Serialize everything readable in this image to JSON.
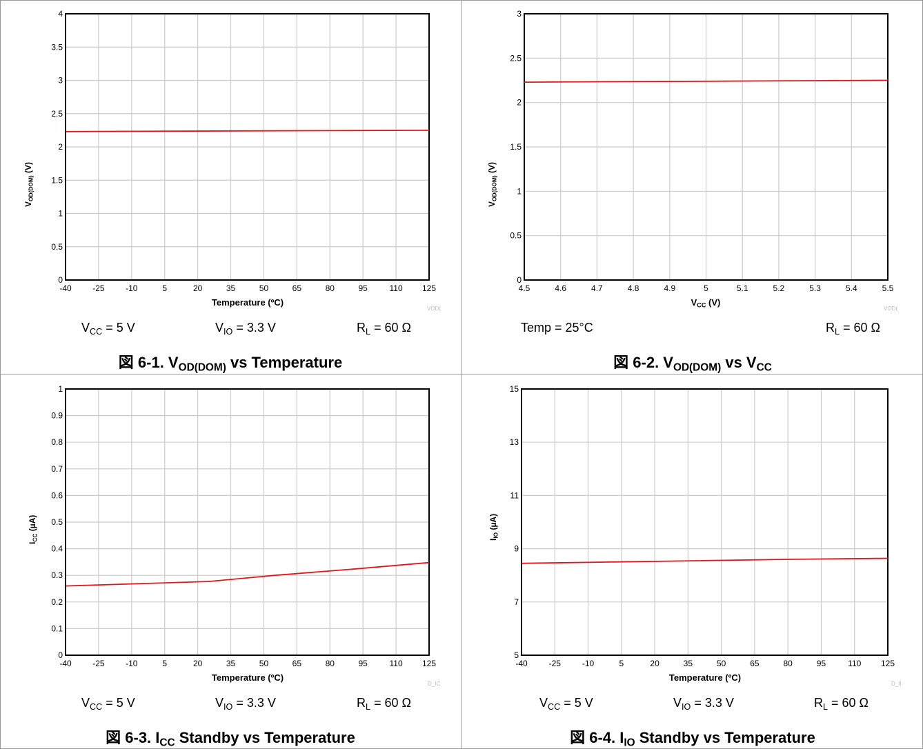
{
  "colors": {
    "series": "#e0161b",
    "grid": "#cccccc",
    "frame": "#000000",
    "divider": "#9a9a9a"
  },
  "chart_data": [
    {
      "type": "line",
      "ylabel": {
        "main": "V",
        "sub": "OD(DOM)",
        "unit": " (V)"
      },
      "xlabel": {
        "main": "Temperature (ºC)",
        "sub": "",
        "unit": ""
      },
      "xticks": [
        "-40",
        "-25",
        "-10",
        "5",
        "20",
        "35",
        "50",
        "65",
        "80",
        "95",
        "110",
        "125"
      ],
      "yticks": [
        "0",
        "0.5",
        "1",
        "1.5",
        "2",
        "2.5",
        "3",
        "3.5",
        "4"
      ],
      "xlim": [
        -40,
        125
      ],
      "ylim": [
        0,
        4
      ],
      "x": [
        -40,
        0,
        40,
        80,
        125
      ],
      "y": [
        2.23,
        2.235,
        2.24,
        2.245,
        2.25
      ],
      "fig_id": "VOD(",
      "conditions": [
        {
          "main": "V",
          "sub": "CC",
          "rest": " = 5 V"
        },
        {
          "main": "V",
          "sub": "IO",
          "rest": " = 3.3 V"
        },
        {
          "main": "R",
          "sub": "L",
          "rest": " = 60 Ω"
        }
      ],
      "caption": {
        "prefix": "図 6-1. V",
        "sub1": "OD(DOM)",
        "mid": " vs Temperature",
        "sub2": ""
      }
    },
    {
      "type": "line",
      "ylabel": {
        "main": "V",
        "sub": "OD(DOM)",
        "unit": " (V)"
      },
      "xlabel": {
        "main": "V",
        "sub": "CC",
        "unit": " (V)"
      },
      "xticks": [
        "4.5",
        "4.6",
        "4.7",
        "4.8",
        "4.9",
        "5",
        "5.1",
        "5.2",
        "5.3",
        "5.4",
        "5.5"
      ],
      "yticks": [
        "0",
        "0.5",
        "1",
        "1.5",
        "2",
        "2.5",
        "3"
      ],
      "xlim": [
        4.5,
        5.5
      ],
      "ylim": [
        0,
        3
      ],
      "x": [
        4.5,
        4.75,
        5.0,
        5.25,
        5.5
      ],
      "y": [
        2.23,
        2.235,
        2.24,
        2.245,
        2.25
      ],
      "fig_id": "VOD(",
      "conditions": [
        {
          "main": "Temp = 25°C",
          "sub": "",
          "rest": ""
        },
        {
          "main": "",
          "sub": "",
          "rest": ""
        },
        {
          "main": "R",
          "sub": "L",
          "rest": " = 60 Ω"
        }
      ],
      "caption": {
        "prefix": "図 6-2. V",
        "sub1": "OD(DOM)",
        "mid": " vs V",
        "sub2": "CC"
      }
    },
    {
      "type": "line",
      "ylabel": {
        "main": "I",
        "sub": "CC",
        "unit": " (µA)"
      },
      "xlabel": {
        "main": "Temperature (ºC)",
        "sub": "",
        "unit": ""
      },
      "xticks": [
        "-40",
        "-25",
        "-10",
        "5",
        "20",
        "35",
        "50",
        "65",
        "80",
        "95",
        "110",
        "125"
      ],
      "yticks": [
        "0",
        "0.1",
        "0.2",
        "0.3",
        "0.4",
        "0.5",
        "0.6",
        "0.7",
        "0.8",
        "0.9",
        "1"
      ],
      "xlim": [
        -40,
        125
      ],
      "ylim": [
        0,
        1
      ],
      "x": [
        -40,
        -10,
        25,
        55,
        90,
        125
      ],
      "y": [
        0.26,
        0.268,
        0.277,
        0.3,
        0.323,
        0.348
      ],
      "fig_id": "D_IC",
      "conditions": [
        {
          "main": "V",
          "sub": "CC",
          "rest": " = 5 V"
        },
        {
          "main": "V",
          "sub": "IO",
          "rest": " = 3.3 V"
        },
        {
          "main": "R",
          "sub": "L",
          "rest": " = 60 Ω"
        }
      ],
      "caption": {
        "prefix": "図 6-3. I",
        "sub1": "CC",
        "mid": " Standby vs Temperature",
        "sub2": ""
      }
    },
    {
      "type": "line",
      "ylabel": {
        "main": "I",
        "sub": "IO",
        "unit": " (µA)"
      },
      "xlabel": {
        "main": "Temperature (ºC)",
        "sub": "",
        "unit": ""
      },
      "xticks": [
        "-40",
        "-25",
        "-10",
        "5",
        "20",
        "35",
        "50",
        "65",
        "80",
        "95",
        "110",
        "125"
      ],
      "yticks": [
        "5",
        "7",
        "9",
        "11",
        "13",
        "15"
      ],
      "xlim": [
        -40,
        125
      ],
      "ylim": [
        5,
        15
      ],
      "x": [
        -40,
        0,
        40,
        80,
        125
      ],
      "y": [
        8.45,
        8.5,
        8.55,
        8.6,
        8.64
      ],
      "fig_id": "D_II",
      "conditions": [
        {
          "main": "V",
          "sub": "CC",
          "rest": " = 5 V"
        },
        {
          "main": "V",
          "sub": "IO",
          "rest": " = 3.3 V"
        },
        {
          "main": "R",
          "sub": "L",
          "rest": " = 60 Ω"
        }
      ],
      "caption": {
        "prefix": "図 6-4. I",
        "sub1": "IO",
        "mid": " Standby vs Temperature",
        "sub2": ""
      }
    }
  ]
}
